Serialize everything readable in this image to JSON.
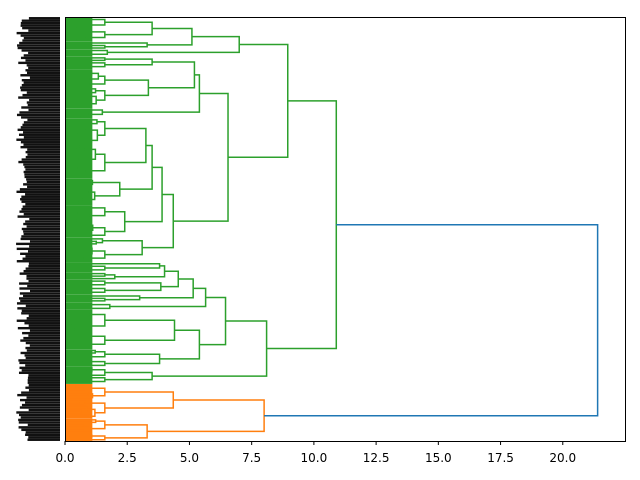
{
  "chart_data": {
    "type": "dendrogram",
    "orientation": "right",
    "title": "",
    "xlabel": "",
    "ylabel": "",
    "xlim": [
      0,
      22.5
    ],
    "grid": false,
    "xtick_values": [
      0,
      2.5,
      5,
      7.5,
      10,
      12.5,
      15,
      17.5,
      20
    ],
    "xtick_labels": [
      "0.0",
      "2.5",
      "5.0",
      "7.5",
      "10.0",
      "12.5",
      "15.0",
      "17.5",
      "20.0"
    ],
    "leaf_count": 171,
    "colors": {
      "above_threshold": "#1f77b4",
      "cluster_1": "#2ca02c",
      "cluster_2": "#ff7f0e"
    },
    "tree": {
      "h": 21.4,
      "color": "#1f77b4",
      "children": [
        {
          "h": 10.9,
          "color": "#2ca02c",
          "children": [
            {
              "h": 8.95,
              "children": [
                {
                  "h": 7.0,
                  "children": [
                    {
                      "h": 5.1,
                      "children": [
                        {
                          "n": 10,
                          "h": 3.5
                        },
                        {
                          "n": 3,
                          "h": 3.3
                        }
                      ]
                    },
                    {
                      "n": 3,
                      "h": 1.7
                    }
                  ]
                },
                {
                  "h": 6.55,
                  "children": [
                    {
                      "h": 5.4,
                      "children": [
                        {
                          "h": 5.2,
                          "children": [
                            {
                              "n": 5,
                              "h": 3.5
                            },
                            {
                              "n": 16,
                              "h": 3.35
                            }
                          ]
                        },
                        {
                          "n": 4,
                          "h": 1.5
                        }
                      ]
                    },
                    {
                      "h": 4.35,
                      "children": [
                        {
                          "h": 3.9,
                          "children": [
                            {
                              "h": 3.5,
                              "children": [
                                {
                                  "n": 24,
                                  "h": 3.25
                                },
                                {
                                  "n": 11,
                                  "h": 2.2
                                }
                              ]
                            },
                            {
                              "n": 13,
                              "h": 2.4
                            }
                          ]
                        },
                        {
                          "n": 10,
                          "h": 3.1
                        }
                      ]
                    }
                  ]
                }
              ]
            },
            {
              "h": 8.1,
              "children": [
                {
                  "h": 6.45,
                  "children": [
                    {
                      "h": 5.65,
                      "children": [
                        {
                          "h": 5.15,
                          "children": [
                            {
                              "h": 4.55,
                              "children": [
                                {
                                  "h": 4.0,
                                  "children": [
                                    {
                                      "n": 4,
                                      "h": 3.8
                                    },
                                    {
                                      "n": 3,
                                      "h": 2.0
                                    }
                                  ]
                                },
                                {
                                  "n": 6,
                                  "h": 3.85
                                }
                              ]
                            },
                            {
                              "n": 3,
                              "h": 3.0
                            }
                          ]
                        },
                        {
                          "n": 3,
                          "h": 1.8
                        }
                      ]
                    },
                    {
                      "h": 5.4,
                      "children": [
                        {
                          "n": 16,
                          "h": 4.4
                        },
                        {
                          "n": 7,
                          "h": 3.8
                        }
                      ]
                    }
                  ]
                },
                {
                  "n": 7,
                  "h": 3.5
                }
              ]
            }
          ]
        },
        {
          "h": 8.0,
          "color": "#ff7f0e",
          "children": [
            {
              "n": 14,
              "h": 4.35
            },
            {
              "n": 9,
              "h": 3.3
            }
          ]
        }
      ]
    }
  }
}
